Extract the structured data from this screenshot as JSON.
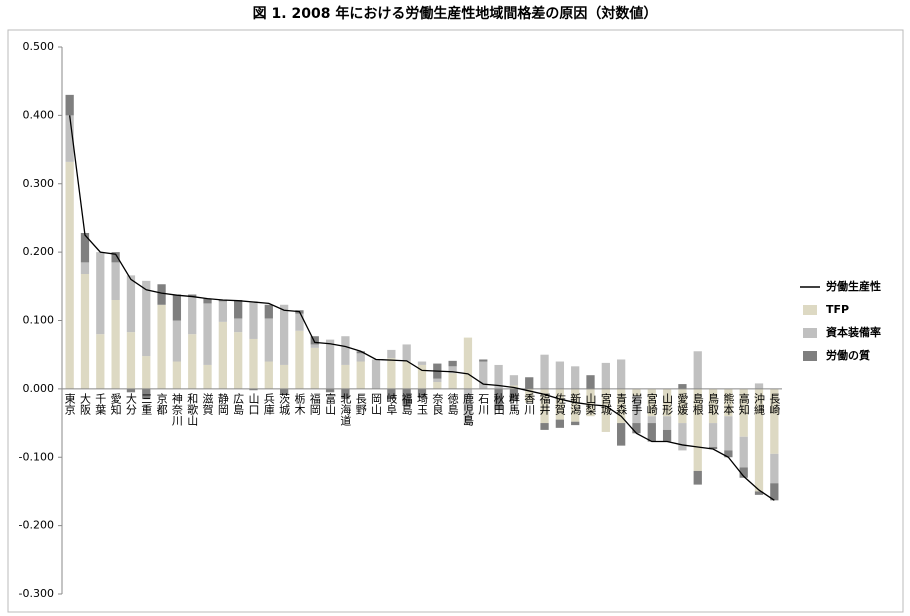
{
  "chart_data": {
    "type": "bar",
    "stacked": true,
    "title": "図 1. 2008 年における労働生産性地域間格差の原因（対数値）",
    "categories": [
      "東京",
      "大阪",
      "千葉",
      "愛知",
      "大分",
      "三重",
      "京都",
      "神奈川",
      "和歌山",
      "滋賀",
      "静岡",
      "広島",
      "山口",
      "兵庫",
      "茨城",
      "栃木",
      "福岡",
      "富山",
      "北海道",
      "長野",
      "岡山",
      "岐阜",
      "福島",
      "埼玉",
      "奈良",
      "徳島",
      "鹿児島",
      "石川",
      "秋田",
      "群馬",
      "香川",
      "福井",
      "佐賀",
      "新潟",
      "山梨",
      "宮城",
      "青森",
      "岩手",
      "宮崎",
      "山形",
      "愛媛",
      "島根",
      "鳥取",
      "熊本",
      "高知",
      "沖縄",
      "長崎"
    ],
    "series": [
      {
        "name": "TFP",
        "color": "#ddd9c3",
        "values": [
          0.332,
          0.168,
          0.08,
          0.13,
          0.083,
          0.048,
          0.123,
          0.04,
          0.08,
          0.035,
          0.098,
          0.083,
          0.073,
          0.04,
          0.035,
          0.085,
          0.06,
          0.0,
          0.035,
          0.04,
          0.0,
          0.045,
          0.04,
          0.035,
          0.01,
          0.023,
          0.075,
          0.0,
          0.0,
          0.005,
          -0.02,
          -0.05,
          -0.045,
          -0.048,
          -0.04,
          -0.063,
          -0.05,
          -0.01,
          -0.04,
          -0.04,
          -0.05,
          -0.12,
          -0.05,
          -0.04,
          -0.07,
          -0.15,
          -0.095
        ]
      },
      {
        "name": "資本装備率",
        "color": "#c0c0c0",
        "values": [
          0.068,
          0.017,
          0.12,
          0.055,
          0.083,
          0.11,
          0.0,
          0.06,
          0.055,
          0.09,
          0.03,
          0.02,
          0.055,
          0.063,
          0.088,
          0.025,
          0.005,
          0.072,
          0.042,
          0.012,
          0.043,
          0.012,
          0.025,
          0.005,
          0.005,
          0.01,
          -0.053,
          0.04,
          0.035,
          0.015,
          0.0,
          0.05,
          0.04,
          0.033,
          0.0,
          0.038,
          0.043,
          -0.04,
          -0.01,
          -0.02,
          -0.04,
          0.055,
          -0.035,
          -0.05,
          -0.045,
          0.008,
          -0.043
        ]
      },
      {
        "name": "労働の質",
        "color": "#7f7f7f",
        "values": [
          0.03,
          0.043,
          0.0,
          0.015,
          -0.005,
          -0.015,
          0.03,
          0.038,
          0.003,
          0.007,
          0.002,
          0.027,
          -0.002,
          0.02,
          -0.008,
          0.005,
          0.012,
          -0.005,
          -0.015,
          0.003,
          0.0,
          -0.015,
          -0.025,
          -0.013,
          0.022,
          0.008,
          0.0,
          0.003,
          -0.03,
          -0.018,
          0.017,
          -0.01,
          -0.012,
          -0.005,
          0.02,
          0.0,
          -0.033,
          -0.015,
          -0.027,
          -0.017,
          0.007,
          -0.02,
          -0.003,
          -0.01,
          -0.015,
          -0.005,
          -0.025
        ]
      },
      {
        "name": "労働生産性",
        "color": "#000000",
        "type": "line",
        "values": [
          0.4,
          0.225,
          0.2,
          0.197,
          0.16,
          0.145,
          0.14,
          0.137,
          0.135,
          0.132,
          0.13,
          0.129,
          0.127,
          0.125,
          0.115,
          0.113,
          0.068,
          0.066,
          0.062,
          0.055,
          0.043,
          0.042,
          0.041,
          0.027,
          0.026,
          0.025,
          0.022,
          0.007,
          0.005,
          0.002,
          -0.003,
          -0.008,
          -0.015,
          -0.02,
          -0.023,
          -0.025,
          -0.04,
          -0.065,
          -0.077,
          -0.077,
          -0.082,
          -0.085,
          -0.088,
          -0.1,
          -0.128,
          -0.148,
          -0.163
        ]
      }
    ],
    "ylim": [
      -0.3,
      0.5
    ],
    "yticks": [
      {
        "value": 0.5,
        "label": "0.500"
      },
      {
        "value": 0.4,
        "label": "0.400"
      },
      {
        "value": 0.3,
        "label": "0.300"
      },
      {
        "value": 0.2,
        "label": "0.200"
      },
      {
        "value": 0.1,
        "label": "0.100"
      },
      {
        "value": 0,
        "label": "0.000"
      },
      {
        "value": -0.1,
        "label": "-0.100"
      },
      {
        "value": -0.2,
        "label": "-0.200"
      },
      {
        "value": -0.3,
        "label": "-0.300"
      }
    ],
    "negative_tick_color": "#e00000",
    "grid": false,
    "legend": "right"
  }
}
